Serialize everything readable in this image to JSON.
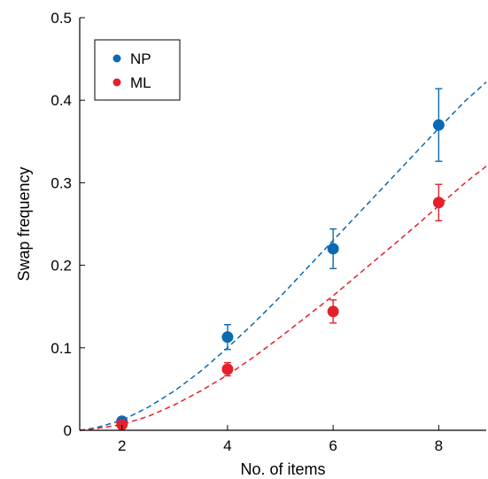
{
  "chart_data": {
    "type": "scatter",
    "xlabel": "No. of items",
    "ylabel": "Swap frequency",
    "xlim": [
      1.2,
      8.9
    ],
    "ylim": [
      0,
      0.5
    ],
    "xticks": [
      2,
      4,
      6,
      8
    ],
    "yticks": [
      0,
      0.1,
      0.2,
      0.3,
      0.4,
      0.5
    ],
    "ytick_labels": [
      "0",
      "0.1",
      "0.2",
      "0.3",
      "0.4",
      "0.5"
    ],
    "legend_position": "top-left",
    "series": [
      {
        "name": "NP",
        "color": "#0a6ab4",
        "x": [
          2,
          4,
          6,
          8
        ],
        "y": [
          0.011,
          0.113,
          0.22,
          0.37
        ],
        "err": [
          0.005,
          0.015,
          0.024,
          0.044
        ],
        "fit_x": [
          1.2,
          1.5,
          2.0,
          2.5,
          3.0,
          3.5,
          4.0,
          4.5,
          5.0,
          5.5,
          6.0,
          6.5,
          7.0,
          7.5,
          8.0,
          8.5,
          8.9
        ],
        "fit_y": [
          0.0,
          0.003,
          0.012,
          0.028,
          0.048,
          0.072,
          0.1,
          0.13,
          0.162,
          0.196,
          0.23,
          0.264,
          0.298,
          0.332,
          0.366,
          0.399,
          0.422
        ]
      },
      {
        "name": "ML",
        "color": "#e4202d",
        "x": [
          2,
          4,
          6,
          8
        ],
        "y": [
          0.007,
          0.074,
          0.144,
          0.276
        ],
        "err": [
          0.003,
          0.008,
          0.014,
          0.022
        ],
        "fit_x": [
          1.2,
          1.5,
          2.0,
          2.5,
          3.0,
          3.5,
          4.0,
          4.5,
          5.0,
          5.5,
          6.0,
          6.5,
          7.0,
          7.5,
          8.0,
          8.5,
          8.9
        ],
        "fit_y": [
          0.0,
          0.002,
          0.007,
          0.017,
          0.031,
          0.048,
          0.067,
          0.089,
          0.113,
          0.138,
          0.163,
          0.19,
          0.217,
          0.244,
          0.272,
          0.3,
          0.32
        ]
      }
    ]
  }
}
